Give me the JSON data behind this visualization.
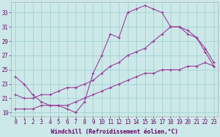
{
  "xlabel": "Windchill (Refroidissement éolien,°C)",
  "ylabel": "",
  "bg_color": "#cce8e8",
  "line_color": "#993399",
  "grid_color": "#99cccc",
  "axis_color": "#333333",
  "text_color": "#660066",
  "xlim": [
    -0.5,
    23.5
  ],
  "ylim": [
    18.5,
    34.5
  ],
  "xticks": [
    0,
    1,
    2,
    3,
    4,
    5,
    6,
    7,
    8,
    9,
    10,
    11,
    12,
    13,
    14,
    15,
    16,
    17,
    18,
    19,
    20,
    21,
    22,
    23
  ],
  "yticks": [
    19,
    21,
    23,
    25,
    27,
    29,
    31,
    33
  ],
  "line1_x": [
    0,
    1,
    2,
    3,
    4,
    5,
    6,
    7,
    8,
    9,
    10,
    11,
    12,
    13,
    14,
    15,
    16,
    17,
    18,
    19,
    20,
    21,
    22,
    23
  ],
  "line1_y": [
    24.0,
    23.0,
    21.5,
    20.5,
    20.0,
    20.0,
    19.5,
    19.0,
    20.5,
    24.5,
    27.0,
    30.0,
    29.5,
    33.0,
    33.5,
    34.0,
    33.5,
    33.0,
    31.0,
    31.0,
    30.5,
    29.5,
    28.0,
    26.0
  ],
  "line2_x": [
    0,
    1,
    2,
    3,
    4,
    5,
    6,
    7,
    8,
    9,
    10,
    11,
    12,
    13,
    14,
    15,
    16,
    17,
    18,
    19,
    20,
    21,
    22,
    23
  ],
  "line2_y": [
    21.5,
    21.0,
    21.0,
    21.5,
    21.5,
    22.0,
    22.5,
    22.5,
    23.0,
    23.5,
    24.5,
    25.5,
    26.0,
    27.0,
    27.5,
    28.0,
    29.0,
    30.0,
    31.0,
    31.0,
    30.0,
    29.5,
    27.5,
    25.5
  ],
  "line3_x": [
    0,
    1,
    2,
    3,
    4,
    5,
    6,
    7,
    8,
    9,
    10,
    11,
    12,
    13,
    14,
    15,
    16,
    17,
    18,
    19,
    20,
    21,
    22,
    23
  ],
  "line3_y": [
    19.5,
    19.5,
    19.5,
    20.0,
    20.0,
    20.0,
    20.0,
    20.5,
    21.0,
    21.5,
    22.0,
    22.5,
    23.0,
    23.5,
    24.0,
    24.5,
    24.5,
    25.0,
    25.0,
    25.0,
    25.5,
    25.5,
    26.0,
    25.5
  ],
  "marker": "+",
  "markersize": 3,
  "linewidth": 0.8,
  "tick_fontsize": 5.5,
  "label_fontsize": 6.0
}
